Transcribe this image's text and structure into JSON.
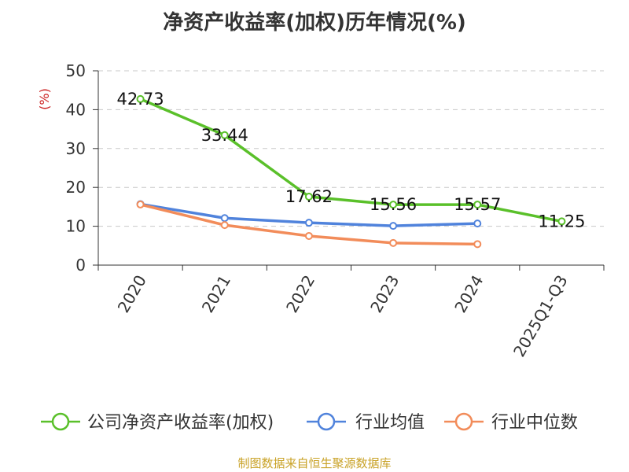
{
  "chart_data": {
    "type": "line",
    "title": "净资产收益率(加权)历年情况(%)",
    "ylabel": "(%)",
    "xlabel": "",
    "ylim": [
      0,
      50
    ],
    "yticks": [
      0,
      10,
      20,
      30,
      40,
      50
    ],
    "grid": true,
    "legend_position": "bottom",
    "categories": [
      "2020",
      "2021",
      "2022",
      "2023",
      "2024",
      "2025Q1-Q3"
    ],
    "series": [
      {
        "name": "公司净资产收益率(加权)",
        "color": "#5ac02a",
        "values": [
          42.73,
          33.44,
          17.62,
          15.56,
          15.57,
          11.25
        ],
        "labels": [
          "42.73",
          "33.44",
          "17.62",
          "15.56",
          "15.57",
          "11.25"
        ]
      },
      {
        "name": "行业均值",
        "color": "#5083dc",
        "values": [
          15.7,
          12.1,
          10.9,
          10.1,
          10.7,
          null
        ]
      },
      {
        "name": "行业中位数",
        "color": "#f28c5a",
        "values": [
          15.6,
          10.3,
          7.5,
          5.7,
          5.4,
          null
        ]
      }
    ]
  },
  "footer": {
    "source": "制图数据来自恒生聚源数据库"
  }
}
